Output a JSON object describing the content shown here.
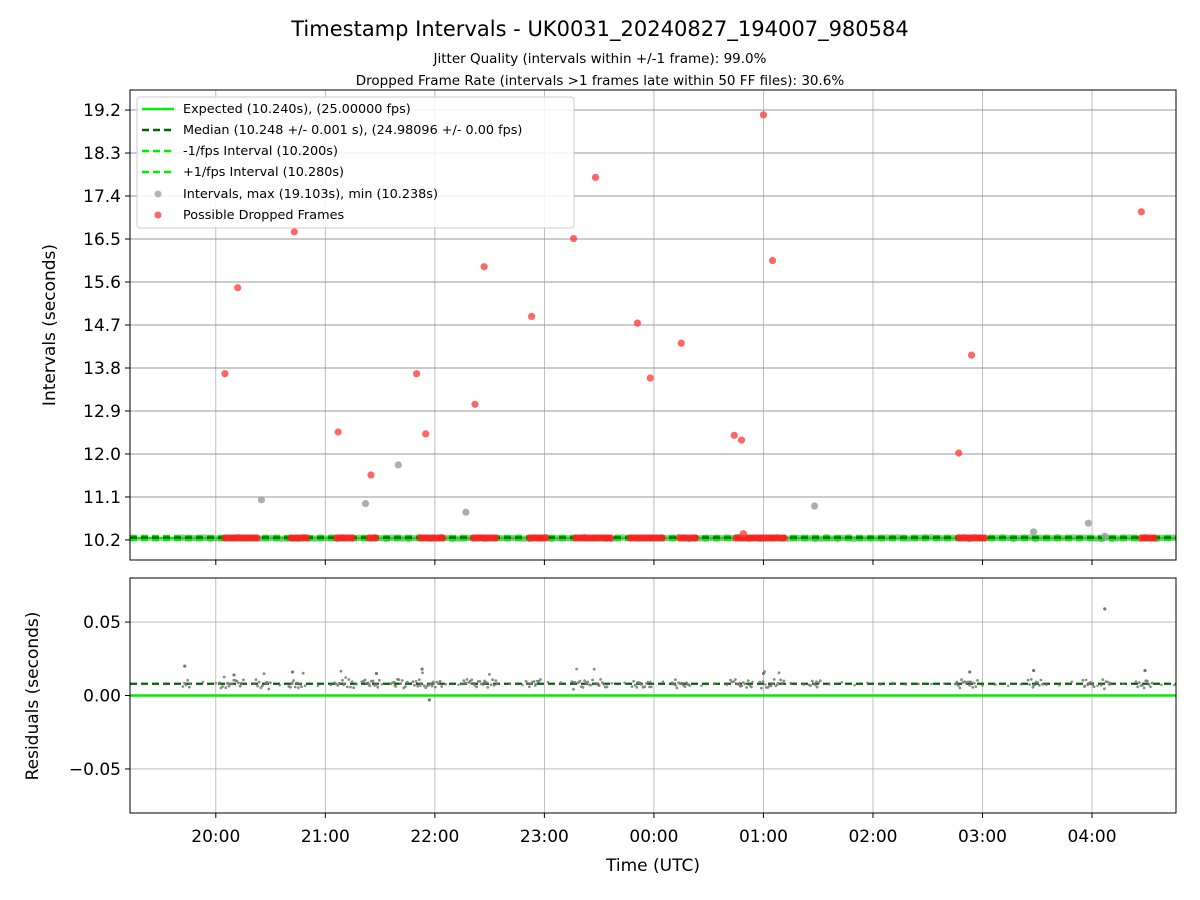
{
  "figure": {
    "title": "Timestamp Intervals - UK0031_20240827_194007_980584",
    "subtitle1": "Jitter Quality (intervals within +/-1 frame): 99.0%",
    "subtitle2": "Dropped Frame Rate (intervals >1 frames late within 50 FF files): 30.6%"
  },
  "colors": {
    "expected": "#00ee00",
    "median": "#006400",
    "interval_points": "#a0a0a0",
    "dropped_points": "#ff4040",
    "residual_points": "#777777",
    "grid": "#b0b0b0"
  },
  "chart_data": [
    {
      "type": "scatter",
      "ylabel": "Intervals (seconds)",
      "xlabel": "",
      "x_ticks": [
        "20:00",
        "21:00",
        "22:00",
        "23:00",
        "00:00",
        "01:00",
        "02:00",
        "03:00",
        "04:00"
      ],
      "y_ticks": [
        "10.2",
        "11.1",
        "12.0",
        "12.9",
        "13.8",
        "14.7",
        "15.6",
        "16.5",
        "17.4",
        "18.3",
        "19.2"
      ],
      "xlim": [
        "19:13",
        "04:46"
      ],
      "ylim": [
        9.78,
        19.62
      ],
      "grid": true,
      "legend_position": "upper-left",
      "lines": [
        {
          "name": "Expected (10.240s), (25.00000 fps)",
          "y": 10.24,
          "style": "solid"
        },
        {
          "name": "Median (10.248 +/- 0.001 s), (24.98096 +/- 0.00 fps)",
          "y": 10.248,
          "style": "dashed"
        },
        {
          "name": "-1/fps Interval (10.200s)",
          "y": 10.2,
          "style": "dashed"
        },
        {
          "name": "+1/fps Interval (10.280s)",
          "y": 10.28,
          "style": "dashed"
        }
      ],
      "baseline_points": {
        "name": "Intervals, max (19.103s), min (10.238s)",
        "x_start": "19:42",
        "x_end": "04:46",
        "y": 10.24
      },
      "dropped_bands": [
        {
          "x_start": "20:05",
          "x_end": "20:23",
          "y": 10.24
        },
        {
          "x_start": "20:41",
          "x_end": "20:50",
          "y": 10.24
        },
        {
          "x_start": "21:06",
          "x_end": "21:15",
          "y": 10.24
        },
        {
          "x_start": "21:24",
          "x_end": "21:28",
          "y": 10.24
        },
        {
          "x_start": "21:52",
          "x_end": "22:06",
          "y": 10.24
        },
        {
          "x_start": "22:21",
          "x_end": "22:35",
          "y": 10.24
        },
        {
          "x_start": "22:52",
          "x_end": "23:02",
          "y": 10.24
        },
        {
          "x_start": "23:17",
          "x_end": "23:37",
          "y": 10.24
        },
        {
          "x_start": "23:47",
          "x_end": "00:06",
          "y": 10.24
        },
        {
          "x_start": "00:14",
          "x_end": "00:24",
          "y": 10.24
        },
        {
          "x_start": "00:45",
          "x_end": "01:13",
          "y": 10.24
        },
        {
          "x_start": "02:47",
          "x_end": "03:02",
          "y": 10.24
        },
        {
          "x_start": "04:27",
          "x_end": "04:35",
          "y": 10.24
        }
      ],
      "series": [
        {
          "name": "Possible Dropped Frames",
          "points": [
            {
              "x": "20:05",
              "y": 13.68
            },
            {
              "x": "20:12",
              "y": 15.48
            },
            {
              "x": "20:43",
              "y": 16.65
            },
            {
              "x": "21:07",
              "y": 12.46
            },
            {
              "x": "21:25",
              "y": 11.56
            },
            {
              "x": "21:50",
              "y": 13.68
            },
            {
              "x": "21:55",
              "y": 12.42
            },
            {
              "x": "22:22",
              "y": 13.04
            },
            {
              "x": "22:27",
              "y": 15.92
            },
            {
              "x": "22:53",
              "y": 14.88
            },
            {
              "x": "23:16",
              "y": 16.51
            },
            {
              "x": "23:28",
              "y": 17.79
            },
            {
              "x": "23:51",
              "y": 14.74
            },
            {
              "x": "23:58",
              "y": 13.59
            },
            {
              "x": "00:15",
              "y": 14.32
            },
            {
              "x": "00:44",
              "y": 12.39
            },
            {
              "x": "00:48",
              "y": 12.29
            },
            {
              "x": "00:49",
              "y": 10.33
            },
            {
              "x": "01:00",
              "y": 19.1
            },
            {
              "x": "01:05",
              "y": 16.05
            },
            {
              "x": "02:47",
              "y": 12.02
            },
            {
              "x": "02:54",
              "y": 14.07
            },
            {
              "x": "04:27",
              "y": 17.07
            }
          ]
        },
        {
          "name": "Intervals, max (19.103s), min (10.238s)",
          "points": [
            {
              "x": "20:25",
              "y": 11.04
            },
            {
              "x": "21:22",
              "y": 10.96
            },
            {
              "x": "21:40",
              "y": 11.77
            },
            {
              "x": "22:17",
              "y": 10.78
            },
            {
              "x": "01:28",
              "y": 10.91
            },
            {
              "x": "03:28",
              "y": 10.37
            },
            {
              "x": "03:58",
              "y": 10.55
            },
            {
              "x": "04:07",
              "y": 10.28
            }
          ]
        }
      ]
    },
    {
      "type": "scatter",
      "ylabel": "Residuals (seconds)",
      "xlabel": "Time (UTC)",
      "x_ticks": [
        "20:00",
        "21:00",
        "22:00",
        "23:00",
        "00:00",
        "01:00",
        "02:00",
        "03:00",
        "04:00"
      ],
      "y_ticks": [
        "0.05",
        "0.00",
        "−0.05"
      ],
      "xlim": [
        "19:13",
        "04:46"
      ],
      "ylim": [
        -0.08,
        0.08
      ],
      "grid": true,
      "lines": [
        {
          "name": "Expected",
          "y": 0.0,
          "style": "solid"
        },
        {
          "name": "Median",
          "y": 0.008,
          "style": "dashed"
        }
      ],
      "clusters": [
        {
          "x_start": "19:42",
          "x_end": "19:46",
          "y": 0.008
        },
        {
          "x_start": "20:02",
          "x_end": "20:16",
          "y": 0.008
        },
        {
          "x_start": "20:22",
          "x_end": "20:30",
          "y": 0.008
        },
        {
          "x_start": "20:40",
          "x_end": "20:48",
          "y": 0.008
        },
        {
          "x_start": "21:05",
          "x_end": "21:16",
          "y": 0.008
        },
        {
          "x_start": "21:20",
          "x_end": "21:30",
          "y": 0.008
        },
        {
          "x_start": "21:36",
          "x_end": "21:45",
          "y": 0.008
        },
        {
          "x_start": "21:48",
          "x_end": "22:04",
          "y": 0.008
        },
        {
          "x_start": "22:15",
          "x_end": "22:35",
          "y": 0.008
        },
        {
          "x_start": "22:50",
          "x_end": "22:58",
          "y": 0.008
        },
        {
          "x_start": "23:15",
          "x_end": "23:35",
          "y": 0.008
        },
        {
          "x_start": "23:48",
          "x_end": "23:59",
          "y": 0.008
        },
        {
          "x_start": "00:10",
          "x_end": "00:20",
          "y": 0.008
        },
        {
          "x_start": "00:42",
          "x_end": "00:54",
          "y": 0.008
        },
        {
          "x_start": "00:58",
          "x_end": "01:12",
          "y": 0.008
        },
        {
          "x_start": "01:25",
          "x_end": "01:32",
          "y": 0.008
        },
        {
          "x_start": "02:45",
          "x_end": "02:58",
          "y": 0.008
        },
        {
          "x_start": "03:25",
          "x_end": "03:33",
          "y": 0.008
        },
        {
          "x_start": "03:55",
          "x_end": "04:02",
          "y": 0.008
        },
        {
          "x_start": "04:05",
          "x_end": "04:10",
          "y": 0.008
        },
        {
          "x_start": "04:25",
          "x_end": "04:33",
          "y": 0.008
        }
      ],
      "points": [
        {
          "x": "19:43",
          "y": 0.02
        },
        {
          "x": "20:10",
          "y": 0.014
        },
        {
          "x": "20:42",
          "y": 0.016
        },
        {
          "x": "21:28",
          "y": 0.015
        },
        {
          "x": "21:53",
          "y": 0.018
        },
        {
          "x": "21:57",
          "y": -0.003
        },
        {
          "x": "01:00",
          "y": 0.015
        },
        {
          "x": "04:07",
          "y": 0.059
        },
        {
          "x": "04:29",
          "y": 0.017
        },
        {
          "x": "03:28",
          "y": 0.017
        },
        {
          "x": "02:53",
          "y": 0.016
        }
      ]
    }
  ]
}
